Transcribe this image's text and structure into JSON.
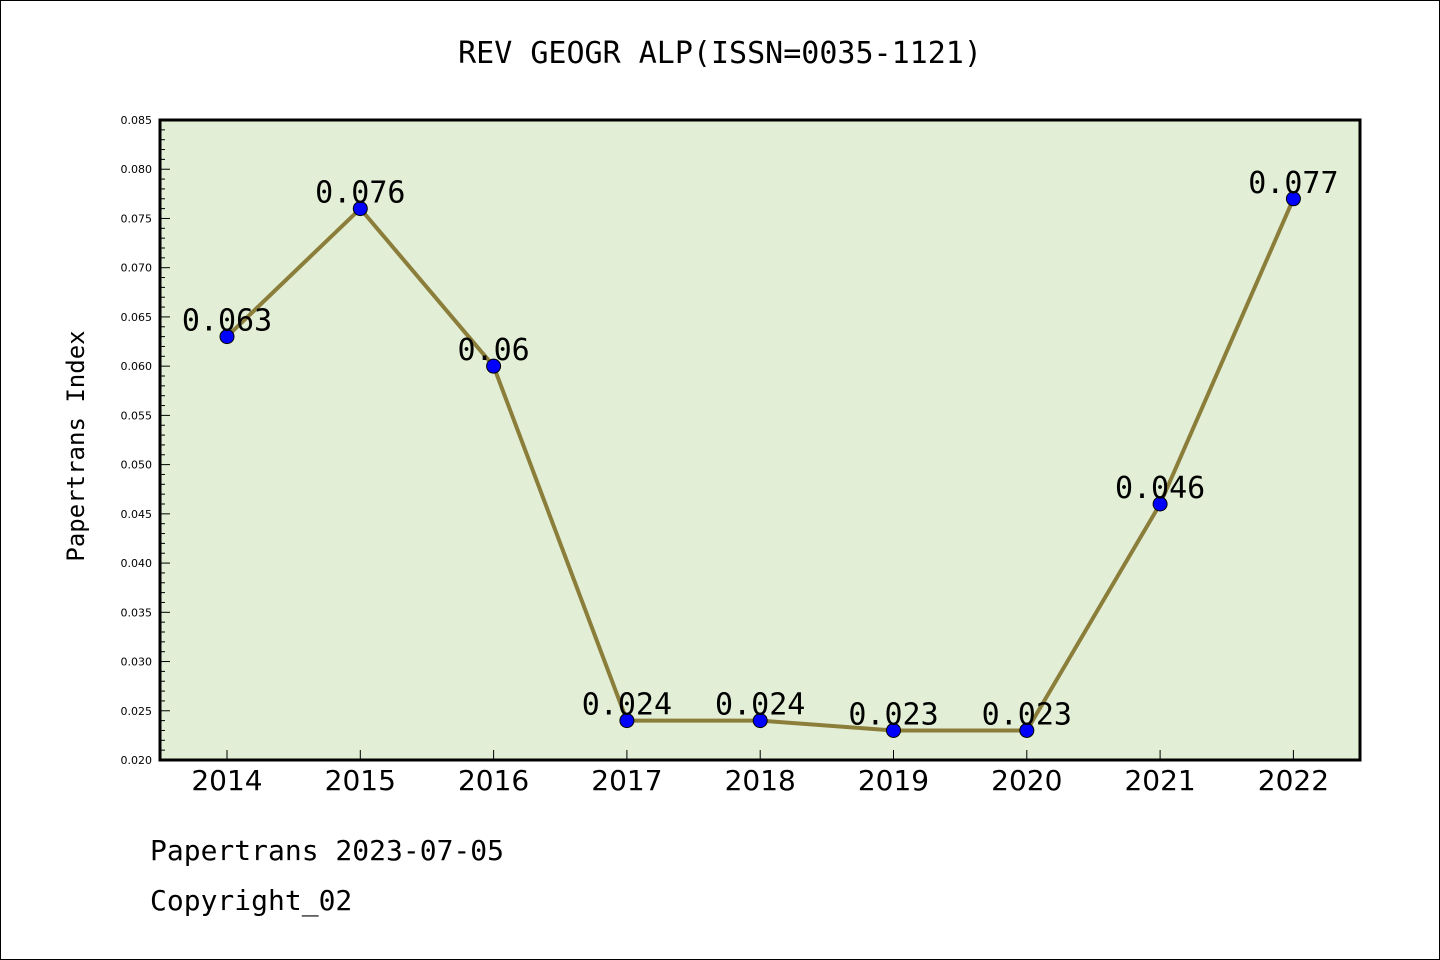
{
  "chart_data": {
    "type": "line",
    "title": "REV GEOGR ALP(ISSN=0035-1121)",
    "xlabel": "",
    "ylabel": "Papertrans Index",
    "categories": [
      "2014",
      "2015",
      "2016",
      "2017",
      "2018",
      "2019",
      "2020",
      "2021",
      "2022"
    ],
    "series": [
      {
        "values": [
          0.063,
          0.076,
          0.06,
          0.024,
          0.024,
          0.023,
          0.023,
          0.046,
          0.077
        ],
        "labels": [
          "0.063",
          "0.076",
          "0.06",
          "0.024",
          "0.024",
          "0.023",
          "0.023",
          "0.046",
          "0.077"
        ]
      }
    ],
    "ylim": [
      0.02,
      0.085
    ],
    "yticks": [
      "0.020",
      "0.025",
      "0.030",
      "0.035",
      "0.040",
      "0.045",
      "0.050",
      "0.055",
      "0.060",
      "0.065",
      "0.070",
      "0.075",
      "0.080",
      "0.085"
    ],
    "grid": false,
    "colors": {
      "plot_bg": "#e2efd6",
      "line": "#8b7d3a",
      "marker": "#0000ff"
    }
  },
  "footer": {
    "line1": "Papertrans 2023-07-05",
    "line2": "Copyright_02"
  }
}
